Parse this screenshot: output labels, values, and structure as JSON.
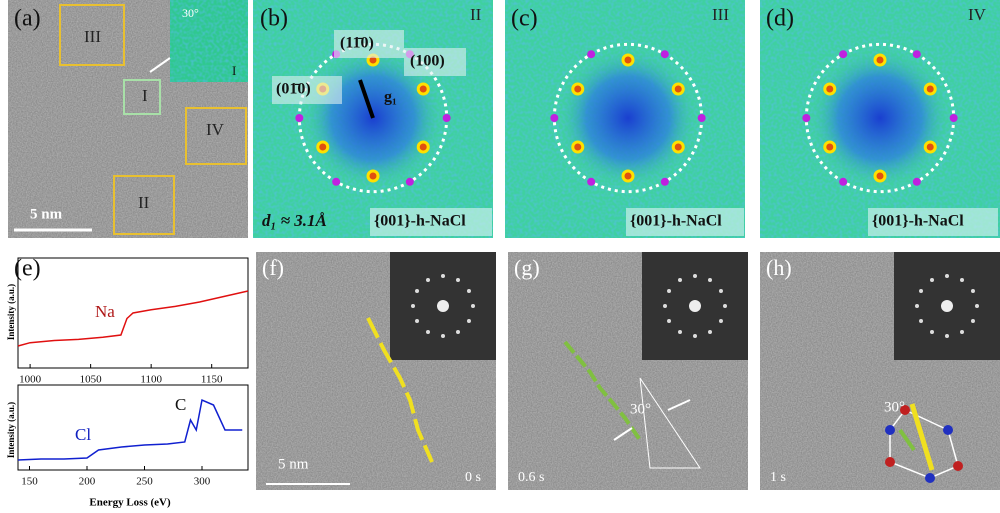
{
  "panels": {
    "a": {
      "label": "(a)",
      "boxes": [
        "III",
        "I",
        "IV",
        "II"
      ],
      "inset_angle": "30°",
      "inset_label": "I",
      "scale": "5 nm"
    },
    "b": {
      "label": "(b)",
      "region": "II",
      "planes": [
        "(11̄0)",
        "(100)",
        "(01̄0)"
      ],
      "vector": "g₁",
      "spacing": "d₁ ≈ 3.1Å",
      "phase": "{001}-h-NaCl"
    },
    "c": {
      "label": "(c)",
      "region": "III",
      "phase": "{001}-h-NaCl"
    },
    "d": {
      "label": "(d)",
      "region": "IV",
      "phase": "{001}-h-NaCl"
    },
    "f": {
      "label": "(f)",
      "scale": "5 nm",
      "time": "0 s"
    },
    "g": {
      "label": "(g)",
      "angle": "30°",
      "time": "0.6 s"
    },
    "h": {
      "label": "(h)",
      "angle": "30°",
      "time": "1 s"
    }
  },
  "spectra": {
    "label": "(e)",
    "y_label": "Intensity (a.u.)",
    "x_label": "Energy Loss (eV)",
    "charts": [
      {
        "type": "line",
        "color": "#e01010",
        "element": "Na",
        "x": [
          990,
          1000,
          1020,
          1040,
          1060,
          1075,
          1080,
          1085,
          1100,
          1120,
          1140,
          1160,
          1180
        ],
        "values": [
          2,
          2.3,
          2.5,
          2.6,
          2.8,
          3,
          4.5,
          5,
          5.3,
          5.6,
          6,
          6.5,
          7
        ],
        "xlim": [
          990,
          1180
        ],
        "ylim": [
          0,
          10
        ],
        "xticks": [
          1000,
          1050,
          1100,
          1150
        ]
      },
      {
        "type": "line",
        "color": "#1020d0",
        "element": "Cl",
        "element2": "C",
        "x": [
          140,
          160,
          180,
          200,
          210,
          230,
          250,
          270,
          285,
          290,
          295,
          300,
          310,
          320,
          335
        ],
        "values": [
          1,
          1.1,
          1.1,
          1.2,
          2,
          2.3,
          2.5,
          2.6,
          2.8,
          5,
          4,
          7,
          6.5,
          4,
          4
        ],
        "xlim": [
          140,
          340
        ],
        "ylim": [
          0,
          8.5
        ],
        "xticks": [
          150,
          200,
          250,
          300
        ]
      }
    ]
  }
}
